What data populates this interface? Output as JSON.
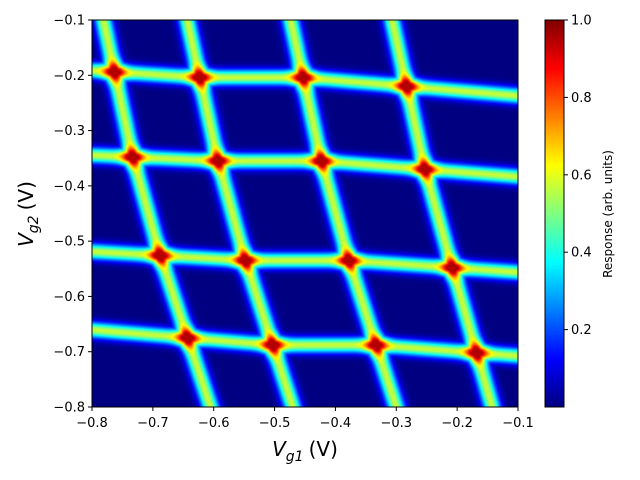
{
  "chart_data": {
    "type": "heatmap",
    "title": "",
    "xlabel": {
      "symbol": "V",
      "subscript": "g1",
      "unit": "(V)"
    },
    "ylabel": {
      "symbol": "V",
      "subscript": "g2",
      "unit": "(V)"
    },
    "xlim": [
      -0.8,
      -0.1
    ],
    "ylim": [
      -0.8,
      -0.1
    ],
    "xticks": [
      -0.8,
      -0.7,
      -0.6,
      -0.5,
      -0.4,
      -0.3,
      -0.2,
      -0.1
    ],
    "xtick_labels": [
      "−0.8",
      "−0.7",
      "−0.6",
      "−0.5",
      "−0.4",
      "−0.3",
      "−0.2",
      "−0.1"
    ],
    "yticks": [
      -0.1,
      -0.2,
      -0.3,
      -0.4,
      -0.5,
      -0.6,
      -0.7,
      -0.8
    ],
    "ytick_labels": [
      "−0.1",
      "−0.2",
      "−0.3",
      "−0.4",
      "−0.5",
      "−0.6",
      "−0.7",
      "−0.8"
    ],
    "colormap": "jet",
    "colorbar": {
      "label": "Response (arb. units)",
      "range": [
        0.0,
        1.0
      ],
      "ticks": [
        0.2,
        0.4,
        0.6,
        0.8,
        1.0
      ],
      "tick_labels": [
        "0.2",
        "0.4",
        "0.6",
        "0.8",
        "1.0"
      ]
    },
    "pattern": {
      "description_points": "triple points (response 1.0) at intersections of transition lines",
      "triple_points": [
        [
          -0.763,
          -0.194
        ],
        [
          -0.623,
          -0.204
        ],
        [
          -0.453,
          -0.204
        ],
        [
          -0.283,
          -0.22
        ],
        [
          -0.733,
          -0.348
        ],
        [
          -0.593,
          -0.355
        ],
        [
          -0.423,
          -0.355
        ],
        [
          -0.253,
          -0.37
        ],
        [
          -0.688,
          -0.526
        ],
        [
          -0.548,
          -0.535
        ],
        [
          -0.378,
          -0.535
        ],
        [
          -0.208,
          -0.548
        ],
        [
          -0.643,
          -0.675
        ],
        [
          -0.503,
          -0.688
        ],
        [
          -0.333,
          -0.688
        ],
        [
          -0.168,
          -0.702
        ]
      ],
      "line_width_v": 0.01,
      "edge_peak": 0.6,
      "background": 0.0
    },
    "grid": false
  }
}
